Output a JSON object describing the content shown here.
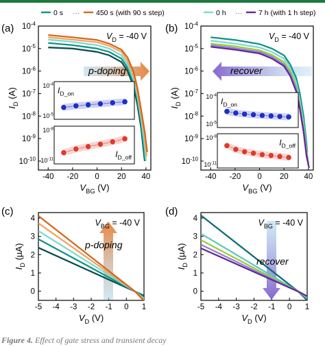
{
  "caption": {
    "label": "Figure 4.",
    "text": "Effect of gate stress and transient decay"
  },
  "colors": {
    "accent_orange": "#e8772a",
    "accent_purple": "#7a56c8",
    "arrow_blue": "#a9d6ec",
    "inset_blue": "#1f2fc8",
    "inset_red": "#e03a2b"
  },
  "chart_data": [
    {
      "panel": "(a)",
      "type": "line",
      "legend": {
        "start": "0 s",
        "end": "450 s (with 90 s step)",
        "placement": "top"
      },
      "annotation": "V_D = -40 V",
      "arrow_label": "p-doping",
      "xlabel": "V_BG (V)",
      "ylabel": "I_D (A)",
      "xlim": [
        -48,
        44
      ],
      "ylim_log10": [
        -10.4,
        -4
      ],
      "yscale": "log",
      "x_ticks": [
        -40,
        -20,
        0,
        20,
        40
      ],
      "y_tick_labels": [
        "10^-10",
        "10^-9",
        "10^-8",
        "10^-7",
        "10^-6",
        "10^-5",
        "10^-4"
      ],
      "series": [
        {
          "color": "#0a4f4f",
          "x": [
            -40,
            -20,
            0,
            10,
            20,
            25,
            30,
            33,
            36,
            38,
            39
          ],
          "log10_y": [
            -4.95,
            -5.0,
            -5.15,
            -5.3,
            -5.6,
            -6.0,
            -6.7,
            -7.5,
            -8.5,
            -9.5,
            -10.0
          ]
        },
        {
          "color": "#0d9488",
          "x": [
            -40,
            -20,
            0,
            10,
            20,
            25,
            30,
            33,
            36,
            38,
            39.5
          ],
          "log10_y": [
            -4.75,
            -4.85,
            -5.0,
            -5.15,
            -5.45,
            -5.85,
            -6.55,
            -7.3,
            -8.3,
            -9.3,
            -10.0
          ]
        },
        {
          "color": "#7fd8d0",
          "x": [
            -40,
            -20,
            0,
            10,
            20,
            25,
            30,
            33,
            36,
            38.5,
            40
          ],
          "log10_y": [
            -4.6,
            -4.7,
            -4.85,
            -5.0,
            -5.3,
            -5.7,
            -6.4,
            -7.1,
            -8.1,
            -9.1,
            -10.0
          ]
        },
        {
          "color": "#f4a460",
          "x": [
            -40,
            -20,
            0,
            10,
            20,
            25,
            30,
            33,
            36,
            39,
            40.5
          ],
          "log10_y": [
            -4.5,
            -4.6,
            -4.72,
            -4.88,
            -5.15,
            -5.55,
            -6.2,
            -6.9,
            -7.9,
            -8.9,
            -9.8
          ]
        },
        {
          "color": "#d2691e",
          "x": [
            -40,
            -20,
            0,
            10,
            20,
            25,
            30,
            33,
            36,
            39,
            41
          ],
          "log10_y": [
            -4.4,
            -4.5,
            -4.62,
            -4.78,
            -5.05,
            -5.4,
            -6.05,
            -6.75,
            -7.7,
            -8.7,
            -9.6
          ]
        }
      ],
      "insets": [
        {
          "label": "I_D_on",
          "y_tick_labels": [
            "10^-4",
            "10^-5"
          ],
          "color": "#1f2fc8",
          "x": [
            0,
            1,
            2,
            3,
            4,
            5
          ],
          "log10_y": [
            -4.72,
            -4.66,
            -4.62,
            -4.58,
            -4.54,
            -4.5
          ],
          "trend": "increasing"
        },
        {
          "label": "I_D_off",
          "y_tick_labels": [
            "10^-8",
            "10^-11"
          ],
          "color": "#e03a2b",
          "x": [
            0,
            1,
            2,
            3,
            4,
            5
          ],
          "log10_y": [
            -10.1,
            -9.8,
            -9.6,
            -9.4,
            -9.2,
            -8.95
          ],
          "trend": "increasing"
        }
      ]
    },
    {
      "panel": "(b)",
      "type": "line",
      "legend": {
        "start": "0 h",
        "end": "7 h (with 1 h step)",
        "placement": "top"
      },
      "annotation": "V_D = -40 V",
      "arrow_label": "recover",
      "xlabel": "V_BG (V)",
      "ylabel": "I_D (A)",
      "xlim": [
        -48,
        44
      ],
      "ylim_log10": [
        -10.4,
        -4
      ],
      "yscale": "log",
      "x_ticks": [
        -40,
        -20,
        0,
        20,
        40
      ],
      "y_tick_labels": [
        "10^-10",
        "10^-9",
        "10^-8",
        "10^-7",
        "10^-6",
        "10^-5",
        "10^-4"
      ],
      "series": [
        {
          "color": "#0d9488",
          "x": [
            -40,
            -20,
            0,
            10,
            20,
            25,
            30,
            33,
            36,
            38,
            39
          ],
          "log10_y": [
            -4.5,
            -4.62,
            -4.8,
            -5.0,
            -5.3,
            -5.7,
            -6.3,
            -7.0,
            -8.0,
            -9.0,
            -9.6
          ]
        },
        {
          "color": "#7fd8d0",
          "x": [
            -40,
            -20,
            0,
            10,
            20,
            25,
            30,
            33,
            36,
            38,
            39.5
          ],
          "log10_y": [
            -4.65,
            -4.78,
            -4.95,
            -5.15,
            -5.45,
            -5.85,
            -6.5,
            -7.3,
            -8.3,
            -9.3,
            -9.9
          ]
        },
        {
          "color": "#9acd32",
          "x": [
            -40,
            -20,
            0,
            10,
            20,
            25,
            30,
            33,
            36,
            38.5,
            40
          ],
          "log10_y": [
            -4.78,
            -4.9,
            -5.08,
            -5.28,
            -5.6,
            -6.0,
            -6.7,
            -7.5,
            -8.5,
            -9.6,
            -10.1
          ]
        },
        {
          "color": "#9a7fd8",
          "x": [
            -40,
            -20,
            0,
            10,
            20,
            25,
            30,
            33,
            36,
            38.5,
            40
          ],
          "log10_y": [
            -4.85,
            -4.98,
            -5.15,
            -5.36,
            -5.7,
            -6.1,
            -6.8,
            -7.6,
            -8.6,
            -9.7,
            -10.2
          ]
        },
        {
          "color": "#5e2a9a",
          "x": [
            -40,
            -20,
            0,
            10,
            20,
            25,
            30,
            33,
            36,
            38.5,
            40.5
          ],
          "log10_y": [
            -4.92,
            -5.05,
            -5.22,
            -5.44,
            -5.78,
            -6.2,
            -6.9,
            -7.7,
            -8.7,
            -9.8,
            -10.3
          ]
        }
      ],
      "insets": [
        {
          "label": "I_D_on",
          "y_tick_labels": [
            "10^-4",
            "10^-5"
          ],
          "color": "#1f2fc8",
          "x": [
            0,
            1,
            2,
            3,
            4,
            5,
            6,
            7
          ],
          "log10_y": [
            -4.5,
            -4.58,
            -4.63,
            -4.66,
            -4.7,
            -4.72,
            -4.75,
            -4.77
          ],
          "trend": "decreasing"
        },
        {
          "label": "I_D_off",
          "y_tick_labels": [
            "10^-8",
            "10^-11"
          ],
          "color": "#e03a2b",
          "x": [
            0,
            1,
            2,
            3,
            4,
            5,
            6,
            7
          ],
          "log10_y": [
            -8.9,
            -9.3,
            -9.55,
            -9.7,
            -9.85,
            -9.95,
            -10.05,
            -10.15
          ],
          "trend": "decreasing"
        }
      ]
    },
    {
      "panel": "(c)",
      "type": "line",
      "annotation": "V_BG = -40 V",
      "arrow_label": "p-doping",
      "xlabel": "V_D (V)",
      "ylabel": "I_D (µA)",
      "xlim": [
        -5,
        1
      ],
      "ylim": [
        -0.5,
        4.3
      ],
      "x_ticks": [
        -5,
        -4,
        -3,
        -2,
        -1,
        0,
        1
      ],
      "y_ticks": [
        0,
        1,
        2,
        3,
        4
      ],
      "series": [
        {
          "color": "#0a4f4f",
          "x": [
            -5,
            0.5,
            1
          ],
          "y": [
            2.38,
            -0.02,
            -0.25
          ]
        },
        {
          "color": "#0d9488",
          "x": [
            -5,
            0.5,
            1
          ],
          "y": [
            2.85,
            -0.02,
            -0.32
          ]
        },
        {
          "color": "#7fd8d0",
          "x": [
            -5,
            0.5,
            1
          ],
          "y": [
            3.3,
            -0.02,
            -0.4
          ]
        },
        {
          "color": "#f4a460",
          "x": [
            -5,
            0.5,
            1
          ],
          "y": [
            3.72,
            -0.02,
            -0.47
          ]
        },
        {
          "color": "#d2691e",
          "x": [
            -5,
            0.5,
            1
          ],
          "y": [
            4.12,
            -0.02,
            -0.53
          ]
        }
      ]
    },
    {
      "panel": "(d)",
      "type": "line",
      "annotation": "V_BG = -40 V",
      "arrow_label": "recover",
      "xlabel": "V_D (V)",
      "ylabel": "I_D (µA)",
      "xlim": [
        -5,
        1
      ],
      "ylim": [
        -0.5,
        4.3
      ],
      "x_ticks": [
        -5,
        -4,
        -3,
        -2,
        -1,
        0,
        1
      ],
      "y_ticks": [
        0,
        1,
        2,
        3,
        4
      ],
      "series": [
        {
          "color": "#0d6e74",
          "x": [
            -5,
            0.5,
            1
          ],
          "y": [
            4.15,
            -0.02,
            -0.5
          ]
        },
        {
          "color": "#5ec8c0",
          "x": [
            -5,
            0.5,
            1
          ],
          "y": [
            3.15,
            -0.02,
            -0.38
          ]
        },
        {
          "color": "#9acd32",
          "x": [
            -5,
            0.5,
            1
          ],
          "y": [
            2.8,
            -0.02,
            -0.33
          ]
        },
        {
          "color": "#9a7fd8",
          "x": [
            -5,
            0.5,
            1
          ],
          "y": [
            2.55,
            -0.02,
            -0.3
          ]
        },
        {
          "color": "#5e2a9a",
          "x": [
            -5,
            0.5,
            1
          ],
          "y": [
            2.35,
            -0.02,
            -0.27
          ]
        }
      ]
    }
  ]
}
